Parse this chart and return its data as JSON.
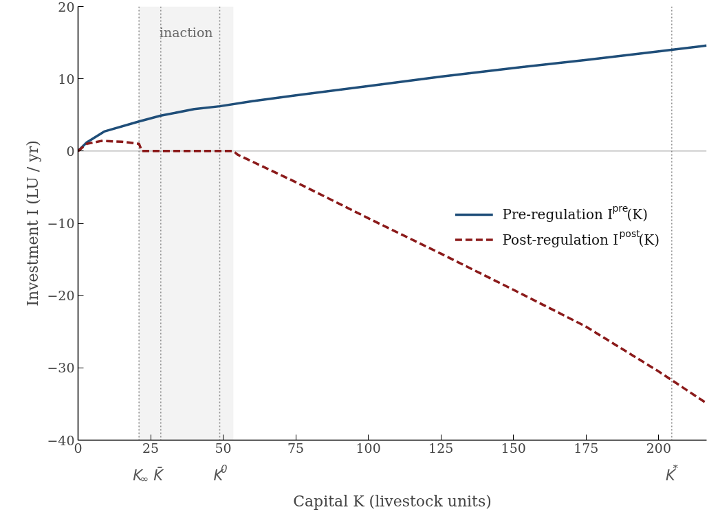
{
  "chart_data": {
    "type": "line",
    "xlabel": "Capital K (livestock units)",
    "ylabel": "Investment I (LU / yr)",
    "xlim": [
      0,
      216.5
    ],
    "ylim": [
      -40,
      20
    ],
    "xticks": [
      0,
      25,
      50,
      75,
      100,
      125,
      150,
      175,
      200
    ],
    "yticks": [
      {
        "value": -40,
        "label": "−40"
      },
      {
        "value": -30,
        "label": "−30"
      },
      {
        "value": -20,
        "label": "−20"
      },
      {
        "value": -10,
        "label": "−10"
      },
      0,
      10,
      20
    ],
    "grid": false,
    "legend": "right",
    "marker": "none",
    "series": [
      {
        "name": "Pre-regulation I$^{pre}$(K)",
        "color": "#1f4e79",
        "line_style": "solid",
        "x": [
          0,
          3,
          9,
          21,
          28.5,
          40,
          48.8,
          60,
          75,
          100,
          125,
          150,
          175,
          200,
          216.5
        ],
        "values": [
          0,
          1.2,
          2.7,
          4.1,
          4.9,
          5.8,
          6.2,
          6.9,
          7.7,
          9.0,
          10.3,
          11.5,
          12.6,
          13.8,
          14.6
        ]
      },
      {
        "name": "Post-regulation I$^{post}$(K)",
        "color": "#8b1a1a",
        "line_style": "dashed",
        "x": [
          0,
          3,
          8,
          15,
          21,
          22,
          53.5,
          55,
          75,
          100,
          125,
          150,
          175,
          200,
          216.5
        ],
        "values": [
          0,
          1.0,
          1.4,
          1.3,
          1.0,
          0,
          0,
          -0.5,
          -4.3,
          -9.3,
          -14.2,
          -19.2,
          -24.3,
          -30.5,
          -34.9
        ]
      }
    ],
    "ref_lines": [
      {
        "axis": "y",
        "value": 0,
        "label": null,
        "color": "#bbbbbb",
        "line_style": "solid"
      },
      {
        "axis": "x",
        "value": 21,
        "label": "K$_{∞}$",
        "color": "#888888",
        "line_style": "dotted"
      },
      {
        "axis": "x",
        "value": 28.5,
        "label": "K̄",
        "color": "#888888",
        "line_style": "dotted"
      },
      {
        "axis": "x",
        "value": 48.8,
        "label": "K$^{0}$",
        "color": "#888888",
        "line_style": "dotted"
      },
      {
        "axis": "x",
        "value": 204.5,
        "label": "K$^{*}$",
        "color": "#888888",
        "line_style": "dotted"
      }
    ],
    "bands": [
      {
        "axis": "x",
        "from": 21,
        "to": 53.5,
        "label": "inaction",
        "color": "#f3f3f3"
      }
    ]
  }
}
